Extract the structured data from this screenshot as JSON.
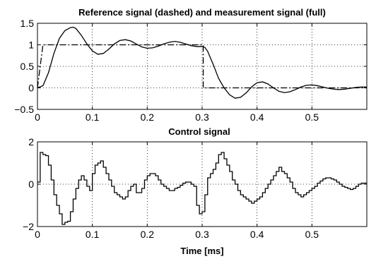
{
  "chart_data": [
    {
      "type": "line",
      "title": "Reference signal (dashed) and measurement signal (full)",
      "xlabel": "",
      "ylabel": "",
      "xlim": [
        0,
        0.6
      ],
      "ylim": [
        -0.5,
        1.5
      ],
      "xticks": [
        0,
        0.1,
        0.2,
        0.3,
        0.4,
        0.5
      ],
      "xtick_labels": [
        "0",
        "0.1",
        "0.2",
        "0.3",
        "0.4",
        "0.5"
      ],
      "yticks": [
        -0.5,
        0,
        0.5,
        1,
        1.5
      ],
      "ytick_labels": [
        "−0.5",
        "0",
        "0.5",
        "1",
        "1.5"
      ],
      "grid": true,
      "series": [
        {
          "style": "dashdot",
          "x": [
            0,
            0.01,
            0.302,
            0.302,
            0.6
          ],
          "y": [
            0,
            1,
            1,
            0,
            0
          ]
        },
        {
          "style": "solid",
          "x": [
            0,
            0.01,
            0.02,
            0.03,
            0.04,
            0.05,
            0.06,
            0.065,
            0.07,
            0.08,
            0.09,
            0.1,
            0.11,
            0.12,
            0.13,
            0.14,
            0.15,
            0.16,
            0.17,
            0.18,
            0.19,
            0.2,
            0.21,
            0.22,
            0.23,
            0.24,
            0.25,
            0.26,
            0.27,
            0.28,
            0.29,
            0.3,
            0.305,
            0.31,
            0.32,
            0.33,
            0.34,
            0.35,
            0.36,
            0.37,
            0.38,
            0.39,
            0.4,
            0.41,
            0.42,
            0.43,
            0.44,
            0.45,
            0.46,
            0.47,
            0.48,
            0.49,
            0.5,
            0.51,
            0.52,
            0.53,
            0.54,
            0.55,
            0.56,
            0.57,
            0.58,
            0.59,
            0.6
          ],
          "y": [
            0,
            0.05,
            0.35,
            0.8,
            1.15,
            1.33,
            1.4,
            1.41,
            1.38,
            1.22,
            1.02,
            0.86,
            0.78,
            0.8,
            0.9,
            1.02,
            1.1,
            1.12,
            1.09,
            1.02,
            0.95,
            0.92,
            0.93,
            0.97,
            1.02,
            1.06,
            1.08,
            1.06,
            1.02,
            0.98,
            0.96,
            0.96,
            0.94,
            0.85,
            0.55,
            0.22,
            0.0,
            -0.16,
            -0.24,
            -0.22,
            -0.12,
            0.02,
            0.12,
            0.14,
            0.09,
            0.0,
            -0.08,
            -0.11,
            -0.09,
            -0.04,
            0.02,
            0.06,
            0.07,
            0.05,
            0.02,
            -0.01,
            -0.03,
            -0.04,
            -0.03,
            -0.01,
            0.01,
            0.02,
            0.02
          ]
        }
      ]
    },
    {
      "type": "line",
      "title": "Control signal",
      "xlabel": "Time [ms]",
      "ylabel": "",
      "xlim": [
        0,
        0.6
      ],
      "ylim": [
        -2,
        2
      ],
      "xticks": [
        0,
        0.1,
        0.2,
        0.3,
        0.4,
        0.5
      ],
      "xtick_labels": [
        "0",
        "0.1",
        "0.2",
        "0.3",
        "0.4",
        "0.5"
      ],
      "yticks": [
        -2,
        0,
        2
      ],
      "ytick_labels": [
        "−2",
        "0",
        "2"
      ],
      "grid": true,
      "step": true,
      "series": [
        {
          "style": "solid",
          "x": [
            0,
            0.005,
            0.01,
            0.015,
            0.02,
            0.025,
            0.03,
            0.035,
            0.04,
            0.045,
            0.05,
            0.055,
            0.06,
            0.065,
            0.07,
            0.075,
            0.08,
            0.085,
            0.09,
            0.095,
            0.1,
            0.105,
            0.11,
            0.115,
            0.12,
            0.125,
            0.13,
            0.135,
            0.14,
            0.145,
            0.15,
            0.155,
            0.16,
            0.165,
            0.17,
            0.175,
            0.18,
            0.185,
            0.19,
            0.195,
            0.2,
            0.205,
            0.21,
            0.215,
            0.22,
            0.225,
            0.23,
            0.235,
            0.24,
            0.245,
            0.25,
            0.255,
            0.26,
            0.265,
            0.27,
            0.275,
            0.28,
            0.285,
            0.29,
            0.295,
            0.3,
            0.305,
            0.31,
            0.315,
            0.32,
            0.325,
            0.33,
            0.335,
            0.34,
            0.345,
            0.35,
            0.355,
            0.36,
            0.365,
            0.37,
            0.375,
            0.38,
            0.385,
            0.39,
            0.395,
            0.4,
            0.405,
            0.41,
            0.415,
            0.42,
            0.425,
            0.43,
            0.435,
            0.44,
            0.445,
            0.45,
            0.455,
            0.46,
            0.465,
            0.47,
            0.475,
            0.48,
            0.485,
            0.49,
            0.495,
            0.5,
            0.505,
            0.51,
            0.515,
            0.52,
            0.525,
            0.53,
            0.535,
            0.54,
            0.545,
            0.55,
            0.555,
            0.56,
            0.565,
            0.57,
            0.575,
            0.58,
            0.585,
            0.59,
            0.595
          ],
          "y": [
            0.1,
            1.5,
            1.4,
            1.35,
            0.9,
            0.2,
            -0.5,
            -1.0,
            -1.4,
            -1.9,
            -1.8,
            -1.75,
            -1.3,
            -0.7,
            -0.2,
            0.2,
            0.4,
            0.2,
            -0.1,
            -0.3,
            0.5,
            0.9,
            1.0,
            1.1,
            0.8,
            0.5,
            0.2,
            -0.1,
            -0.4,
            -0.5,
            -0.6,
            -0.7,
            -0.6,
            -0.3,
            -0.1,
            0.0,
            -0.4,
            -0.4,
            -0.2,
            0.2,
            0.4,
            0.5,
            0.5,
            0.4,
            0.2,
            0.0,
            -0.1,
            -0.2,
            -0.3,
            -0.3,
            -0.2,
            -0.15,
            -0.05,
            0.05,
            0.1,
            0.1,
            0.0,
            -0.1,
            -1.0,
            -1.4,
            -1.3,
            -0.5,
            0.3,
            0.5,
            0.7,
            1.0,
            1.4,
            1.5,
            1.2,
            0.9,
            0.6,
            0.2,
            0.0,
            -0.3,
            -0.5,
            -0.6,
            -0.7,
            -0.8,
            -0.9,
            -0.8,
            -0.7,
            -0.6,
            -0.4,
            -0.2,
            0.0,
            0.2,
            0.4,
            0.6,
            0.8,
            0.6,
            0.5,
            0.3,
            0.1,
            -0.2,
            -0.4,
            -0.5,
            -0.6,
            -0.5,
            -0.4,
            -0.3,
            -0.2,
            -0.1,
            0.05,
            0.15,
            0.25,
            0.3,
            0.3,
            0.25,
            0.2,
            0.1,
            0.0,
            -0.1,
            -0.15,
            -0.2,
            -0.25,
            -0.2,
            -0.1,
            0.0,
            0.05,
            0.05
          ]
        }
      ]
    }
  ]
}
